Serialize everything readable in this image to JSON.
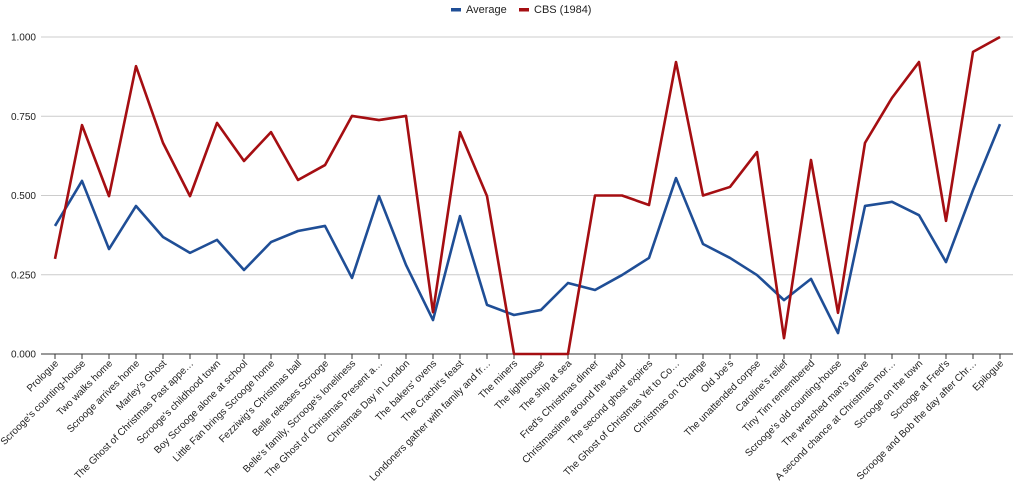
{
  "chart_data": {
    "type": "line",
    "title": "",
    "xlabel": "",
    "ylabel": "",
    "ylim": [
      0,
      1
    ],
    "yticks": [
      "0.000",
      "0.250",
      "0.500",
      "0.750",
      "1.000"
    ],
    "ytick_values": [
      0,
      0.25,
      0.5,
      0.75,
      1
    ],
    "grid": true,
    "legend_position": "top-center",
    "categories": [
      "Prologue",
      "Scrooge's counting-house",
      "Two walks home",
      "Scrooge arrives home",
      "Marley's Ghost",
      "The Ghost of Christmas Past appe…",
      "Scrooge's childhood town",
      "Boy Scrooge alone at school",
      "Little Fan brings Scrooge home",
      "Fezziwig's Christmas ball",
      "Belle releases Scrooge",
      "Belle's family, Scrooge's loneliness",
      "The Ghost of Christmas Present a…",
      "Christmas Day in London",
      "The bakers' ovens",
      "The Crachit's feast",
      "Londoners gather with family and fr…",
      "The miners",
      "The lighthouse",
      "The ship at sea",
      "Fred's Christmas dinner",
      "Christmastime around the world",
      "The second ghost expires",
      "The Ghost of Christmas Yet to Co…",
      "Christmas on 'Change",
      "Old Joe's",
      "The unattended corpse",
      "Caroline's relief",
      "Tiny Tim remembered",
      "Scrooge's old counting-house",
      "The wretched man's grave",
      "A second chance at Christmas mor…",
      "Scrooge on the town",
      "Scrooge at Fred's",
      "Scrooge and Bob the day after Chr…",
      "Epilogue"
    ],
    "series": [
      {
        "name": "Average",
        "color": "#1f4e96",
        "values": [
          0.404,
          0.546,
          0.331,
          0.467,
          0.369,
          0.319,
          0.36,
          0.265,
          0.353,
          0.388,
          0.404,
          0.24,
          0.498,
          0.281,
          0.107,
          0.435,
          0.155,
          0.123,
          0.139,
          0.224,
          0.202,
          0.249,
          0.303,
          0.555,
          0.347,
          0.303,
          0.249,
          0.17,
          0.237,
          0.066,
          0.467,
          0.48,
          0.438,
          0.29,
          0.517,
          0.725
        ]
      },
      {
        "name": "CBS (1984)",
        "color": "#a50e12",
        "values": [
          0.3,
          0.722,
          0.498,
          0.908,
          0.666,
          0.498,
          0.729,
          0.609,
          0.7,
          0.549,
          0.596,
          0.751,
          0.738,
          0.751,
          0.132,
          0.7,
          0.498,
          0,
          0,
          0,
          0.5,
          0.5,
          0.47,
          0.921,
          0.5,
          0.527,
          0.637,
          0.05,
          0.612,
          0.13,
          0.666,
          0.808,
          0.921,
          0.42,
          0.953,
          1.0
        ]
      }
    ]
  }
}
